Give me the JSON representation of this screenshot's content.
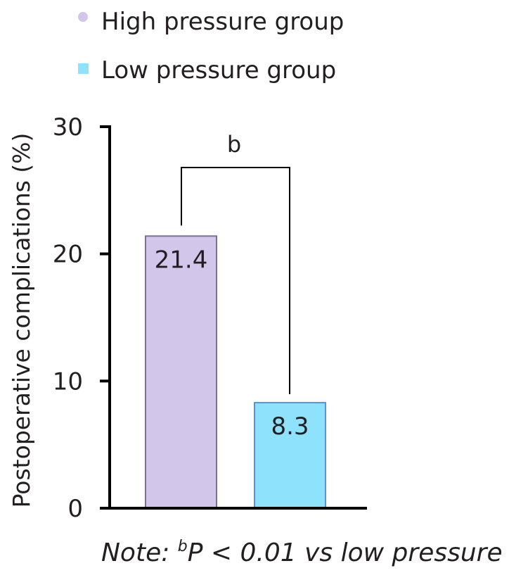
{
  "chart_data": {
    "type": "bar",
    "categories": [
      "High pressure group",
      "Low pressure group"
    ],
    "values": [
      21.4,
      8.3
    ],
    "data_labels": [
      "21.4",
      "8.3"
    ],
    "legend": [
      {
        "label": "High pressure group",
        "color": "#d2c6ea",
        "marker": "circle"
      },
      {
        "label": "Low pressure group",
        "color": "#8fe2fb",
        "marker": "square"
      }
    ],
    "bar_fill": [
      "#d2c6ea",
      "#8fe2fb"
    ],
    "bar_stroke": [
      "#7d6f95",
      "#4f95e6"
    ],
    "ylabel": "Postoperative complications (%)",
    "ylim": [
      0,
      30
    ],
    "yticks": [
      0,
      10,
      20,
      30
    ],
    "ytick_labels": [
      "0",
      "10",
      "20",
      "30"
    ],
    "significance": {
      "label": "b",
      "pair": [
        0,
        1
      ]
    },
    "legend_position": "top-left",
    "grid": false
  },
  "note": {
    "prefix": "Note: ",
    "superscript": "b",
    "rest": "P < 0.01 vs low pressure"
  }
}
